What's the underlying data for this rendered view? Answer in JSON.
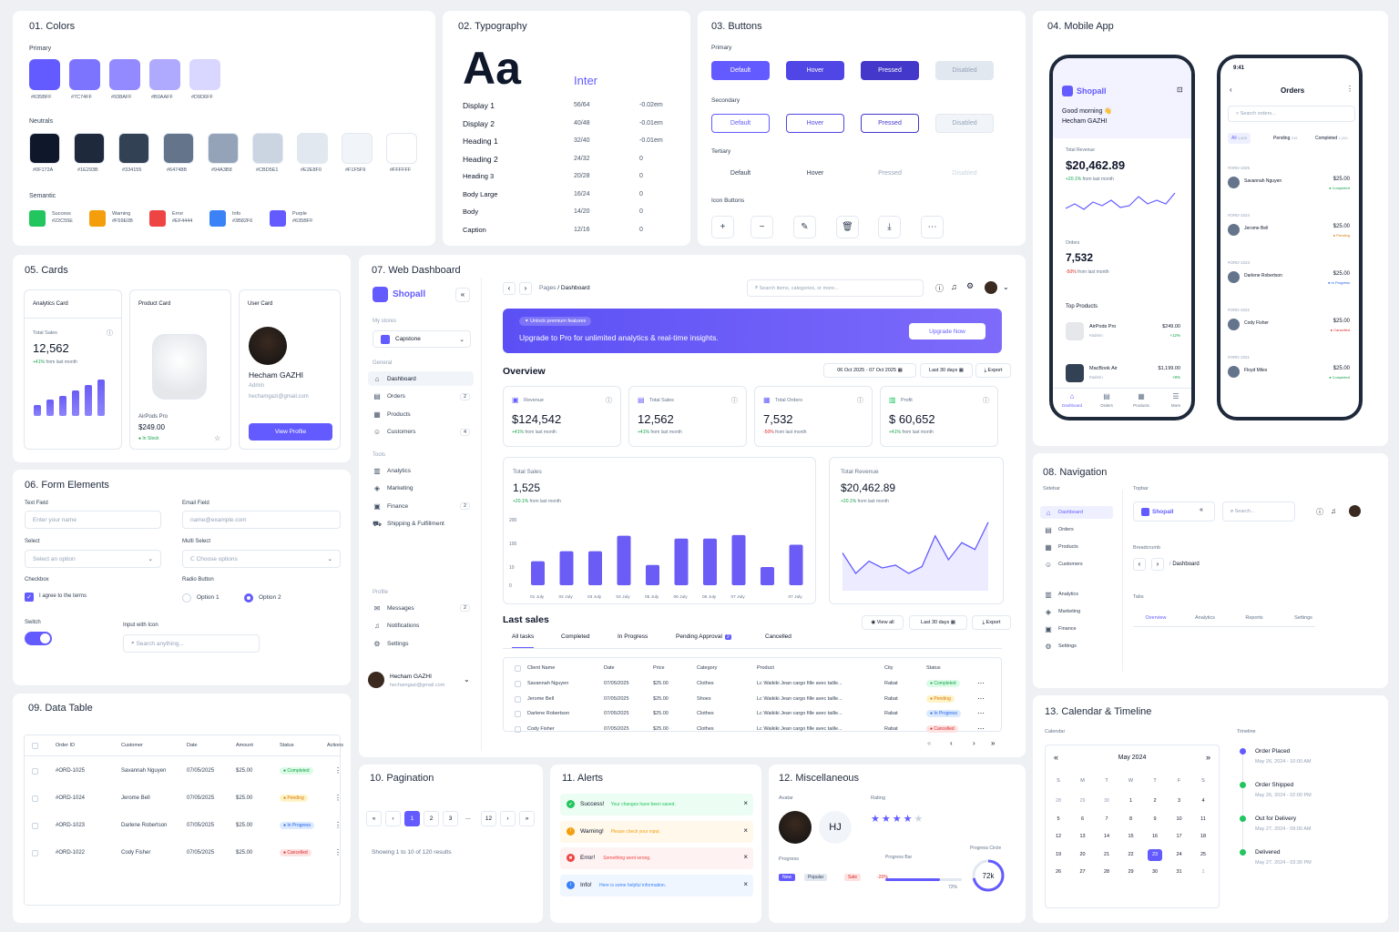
{
  "colors": {
    "title": "01. Colors",
    "primary_label": "Primary",
    "neutrals_label": "Neutrals",
    "semantic_label": "Semantic",
    "primary": [
      {
        "hex": "#635BFF",
        "label": "#635BFF"
      },
      {
        "hex": "#7C74FF",
        "label": "#7C74FF"
      },
      {
        "hex": "#938AFF",
        "label": "#938AFF"
      },
      {
        "hex": "#B0AAFF",
        "label": "#B0AAFF"
      },
      {
        "hex": "#D9D6FF",
        "label": "#D9D6FF"
      }
    ],
    "neutrals": [
      {
        "hex": "#0F172A",
        "label": "#0F172A"
      },
      {
        "hex": "#1E293B",
        "label": "#1E293B"
      },
      {
        "hex": "#334155",
        "label": "#334155"
      },
      {
        "hex": "#64748B",
        "label": "#64748B"
      },
      {
        "hex": "#94A3B8",
        "label": "#94A3B8"
      },
      {
        "hex": "#CBD5E1",
        "label": "#CBD5E1"
      },
      {
        "hex": "#E2E8F0",
        "label": "#E2E8F0"
      },
      {
        "hex": "#F1F5F9",
        "label": "#F1F5F9"
      },
      {
        "hex": "#FFFFFF",
        "label": "#FFFFFF"
      }
    ],
    "semantic": [
      {
        "hex": "#22C55E",
        "name": "Success",
        "label": "#22C55E"
      },
      {
        "hex": "#F59E0B",
        "name": "Warning",
        "label": "#F59E0B"
      },
      {
        "hex": "#EF4444",
        "name": "Error",
        "label": "#EF4444"
      },
      {
        "hex": "#3B82F6",
        "name": "Info",
        "label": "#3B82F6"
      },
      {
        "hex": "#635BFF",
        "name": "Purple",
        "label": "#635BFF"
      }
    ]
  },
  "typography": {
    "title": "02. Typography",
    "sample": "Aa",
    "font": "Inter",
    "rows": [
      {
        "n": "Display 1",
        "s": "56/64",
        "t": "-0.02em"
      },
      {
        "n": "Display 2",
        "s": "40/48",
        "t": "-0.01em"
      },
      {
        "n": "Heading 1",
        "s": "32/40",
        "t": "-0.01em"
      },
      {
        "n": "Heading 2",
        "s": "24/32",
        "t": "0"
      },
      {
        "n": "Heading 3",
        "s": "20/28",
        "t": "0"
      },
      {
        "n": "Body Large",
        "s": "16/24",
        "t": "0"
      },
      {
        "n": "Body",
        "s": "14/20",
        "t": "0"
      },
      {
        "n": "Caption",
        "s": "12/16",
        "t": "0"
      }
    ]
  },
  "buttons": {
    "title": "03. Buttons",
    "primary": "Primary",
    "secondary": "Secondary",
    "tertiary": "Tertiary",
    "icon": "Icon Buttons",
    "states": [
      "Default",
      "Hover",
      "Pressed",
      "Disabled"
    ]
  },
  "mobile": {
    "title": "04. Mobile App",
    "time": "9:41",
    "brand": "Shopall",
    "greeting": "Good morning 👋",
    "user": "Hecham GAZHI",
    "rev_label": "Total Revenue",
    "rev": "$20,462.89",
    "rev_ch": "+20.1%",
    "rev_from": "from last month",
    "ord_label": "Orders",
    "ord": "7,532",
    "ord_ch": "-50%",
    "ord_from": "from last month",
    "top": "Top Products",
    "products": [
      {
        "n": "AirPods Pro",
        "s": "#admin",
        "p": "$249.00",
        "c": "+12%"
      },
      {
        "n": "MacBook Air",
        "s": "#admin",
        "p": "$1,199.00",
        "c": "+8%"
      }
    ],
    "tabs": [
      "Dashboard",
      "Orders",
      "Products",
      "More"
    ],
    "orders_title": "Orders",
    "search": "Search orders...",
    "otabs": [
      {
        "l": "All",
        "c": "1,525"
      },
      {
        "l": "Pending",
        "c": "215"
      },
      {
        "l": "Completed",
        "c": "1,310"
      }
    ],
    "orders": [
      {
        "id": "#ORD-1025",
        "n": "Savannah Nguyen",
        "a": "$25.00",
        "s": "Completed"
      },
      {
        "id": "#ORD-1024",
        "n": "Jerome Bell",
        "a": "$25.00",
        "s": "Pending"
      },
      {
        "id": "#ORD-1023",
        "n": "Darlene Robertson",
        "a": "$25.00",
        "s": "In Progress"
      },
      {
        "id": "#ORD-1022",
        "n": "Cody Fisher",
        "a": "$25.00",
        "s": "Cancelled"
      },
      {
        "id": "#ORD-1021",
        "n": "Floyd Miles",
        "a": "$25.00",
        "s": "Completed"
      }
    ]
  },
  "cards": {
    "title": "05. Cards",
    "a_title": "Analytics Card",
    "a_label": "Total Sales",
    "a_val": "12,562",
    "a_ch": "+41%",
    "a_from": "from last month",
    "a_bars": [
      0.3,
      0.45,
      0.55,
      0.7,
      0.85,
      1.0
    ],
    "p_title": "Product Card",
    "p_name": "AirPods Pro",
    "p_price": "$249.00",
    "p_stock": "In Stock",
    "u_title": "User Card",
    "u_name": "Hecham GAZHI",
    "u_role": "Admin",
    "u_mail": "hechamgazi@gmail.com",
    "u_btn": "View Profile"
  },
  "forms": {
    "title": "06. Form Elements",
    "text": "Text Field",
    "text_ph": "Enter your name",
    "email": "Email Field",
    "email_ph": "name@example.com",
    "select": "Select",
    "select_ph": "Select an option",
    "multi": "Multi Select",
    "multi_ph": "Choose options",
    "checkbox": "Checkbox",
    "check_text": "I agree to the terms",
    "radio": "Radio Button",
    "r1": "Option 1",
    "r2": "Option 2",
    "switch": "Switch",
    "iwi": "Input with Icon",
    "iwi_ph": "Search anything..."
  },
  "dash": {
    "title": "07. Web Dashboard",
    "brand": "Shopall",
    "stores": "My stores",
    "store": "Capstone",
    "general": "General",
    "gen": [
      {
        "l": "Dashboard",
        "c": ""
      },
      {
        "l": "Orders",
        "c": "2"
      },
      {
        "l": "Products",
        "c": ""
      },
      {
        "l": "Customers",
        "c": "4"
      }
    ],
    "tools": "Tools",
    "tool": [
      {
        "l": "Analytics",
        "c": ""
      },
      {
        "l": "Marketing",
        "c": ""
      },
      {
        "l": "Finance",
        "c": "2"
      },
      {
        "l": "Shipping & Fulfillment",
        "c": ""
      }
    ],
    "profile": "Profile",
    "prof": [
      {
        "l": "Messages",
        "c": "2"
      },
      {
        "l": "Notifications",
        "c": ""
      },
      {
        "l": "Settings",
        "c": ""
      }
    ],
    "user": "Hecham GAZHI",
    "mail": "hechamgazi@gmail.com",
    "crumb1": "Pages",
    "crumb2": "Dashboard",
    "search": "Search items, categories, or more...",
    "promo_tag": "Unlock premium features",
    "promo": "Upgrade to Pro for unlimited analytics & real-time insights.",
    "promo_btn": "Upgrade Now",
    "overview": "Overview",
    "range": "06 Oct 2025 - 07 Oct 2025",
    "last30": "Last 30 days",
    "export": "Export",
    "kpis": [
      {
        "l": "Revenue",
        "v": "$124,542",
        "c": "+41%",
        "f": "from last month"
      },
      {
        "l": "Total Sales",
        "v": "12,562",
        "c": "+41%",
        "f": "from last month"
      },
      {
        "l": "Total Orders",
        "v": "7,532",
        "c": "-50%",
        "f": "from last month"
      },
      {
        "l": "Profit",
        "v": "$ 60,652",
        "c": "+41%",
        "f": "from last month"
      }
    ],
    "ts_label": "Total Sales",
    "ts_val": "1,525",
    "ts_ch": "+20.1%",
    "ts_from": "from last month",
    "tr_label": "Total Revenue",
    "tr_val": "$20,462.89",
    "tr_ch": "+20.1%",
    "tr_from": "from last month",
    "last_sales": "Last sales",
    "view_all": "View all",
    "stabs": [
      "All tasks",
      "Completed",
      "In Progress",
      "Pending Approval",
      "Cancelled"
    ],
    "pending_count": "2",
    "cols": [
      "Client Name",
      "Date",
      "Price",
      "Category",
      "Product",
      "City",
      "Status"
    ],
    "rows": [
      {
        "n": "Savannah Nguyen",
        "d": "07/05/2025",
        "p": "$25.00",
        "c": "Clothes",
        "pr": "Lc Waikiki Jean cargo fille avec taille...",
        "ci": "Rabat",
        "s": "Completed"
      },
      {
        "n": "Jerome Bell",
        "d": "07/05/2025",
        "p": "$25.00",
        "c": "Shoes",
        "pr": "Lc Waikiki Jean cargo fille avec taille...",
        "ci": "Rabat",
        "s": "Pending"
      },
      {
        "n": "Darlene Robertson",
        "d": "07/05/2025",
        "p": "$25.00",
        "c": "Clothes",
        "pr": "Lc Waikiki Jean cargo fille avec taille...",
        "ci": "Rabat",
        "s": "In Progress"
      },
      {
        "n": "Cody Fisher",
        "d": "07/05/2025",
        "p": "$25.00",
        "c": "Clothes",
        "pr": "Lc Waikiki Jean cargo fille avec taille...",
        "ci": "Rabat",
        "s": "Cancelled"
      }
    ]
  },
  "chart_data": [
    {
      "type": "bar",
      "title": "Total Sales",
      "categories": [
        "01 July",
        "02 July",
        "03 July",
        "04 July",
        "05 July",
        "06 July",
        "06 July",
        "07 July",
        "",
        "07 July"
      ],
      "values": [
        32,
        70,
        70,
        132,
        18,
        120,
        120,
        135,
        10,
        95
      ],
      "yticks": [
        "200",
        "100",
        "10",
        "0"
      ],
      "ylim": [
        0,
        200
      ]
    },
    {
      "type": "line",
      "title": "Total Revenue",
      "x": [
        1,
        2,
        3,
        4,
        5,
        6,
        7,
        8,
        9,
        10,
        11,
        12
      ],
      "values": [
        50,
        20,
        38,
        28,
        32,
        20,
        30,
        75,
        40,
        65,
        55,
        95
      ]
    },
    {
      "type": "bar",
      "title": "Analytics Card",
      "values": [
        0.3,
        0.45,
        0.55,
        0.7,
        0.85,
        1.0
      ]
    }
  ],
  "nav": {
    "title": "08. Navigation",
    "sidebar": "Sidebar",
    "items": [
      "Dashboard",
      "Orders",
      "Products",
      "Customers",
      "Analytics",
      "Marketing",
      "Finance",
      "Settings"
    ],
    "topbar": "Topbar",
    "brand": "Shopall",
    "search": "Search...",
    "breadcrumb": "Breadcrumb",
    "crumb": "Dashboard",
    "tabs_label": "Tabs",
    "tabs": [
      "Overview",
      "Analytics",
      "Reports",
      "Settings"
    ]
  },
  "table": {
    "title": "09. Data Table",
    "cols": [
      "Order ID",
      "Customer",
      "Date",
      "Amount",
      "Status",
      "Actions"
    ],
    "rows": [
      {
        "id": "#ORD-1025",
        "n": "Savannah Nguyen",
        "d": "07/05/2025",
        "a": "$25.00",
        "s": "Completed"
      },
      {
        "id": "#ORD-1024",
        "n": "Jerome Bell",
        "d": "07/05/2025",
        "a": "$25.00",
        "s": "Pending"
      },
      {
        "id": "#ORD-1023",
        "n": "Darlene Robertson",
        "d": "07/05/2025",
        "a": "$25.00",
        "s": "In Progress"
      },
      {
        "id": "#ORD-1022",
        "n": "Cody Fisher",
        "d": "07/05/2025",
        "a": "$25.00",
        "s": "Cancelled"
      }
    ]
  },
  "pagination": {
    "title": "10. Pagination",
    "pages": [
      "1",
      "2",
      "3",
      "...",
      "12"
    ],
    "info": "Showing 1 to 10 of 120 results"
  },
  "alerts": {
    "title": "11. Alerts",
    "items": [
      {
        "t": "Success!",
        "m": "Your changes have been saved.",
        "c": "#22C55E",
        "bg": "#ECFDF3"
      },
      {
        "t": "Warning!",
        "m": "Please check your input.",
        "c": "#F59E0B",
        "bg": "#FFF8EB"
      },
      {
        "t": "Error!",
        "m": "Something went wrong.",
        "c": "#EF4444",
        "bg": "#FEF2F2"
      },
      {
        "t": "Info!",
        "m": "Here is some helpful information.",
        "c": "#3B82F6",
        "bg": "#EFF6FF"
      }
    ]
  },
  "misc": {
    "title": "12. Miscellaneous",
    "avatar": "Avatar",
    "initials": "HJ",
    "rating": "Rating",
    "stars": 4,
    "progress": "Progress",
    "tags": [
      "New",
      "Popular",
      "Sale",
      "-20%"
    ],
    "pbar": "Progress Bar",
    "pval": "72%",
    "pfill": 0.72,
    "pcircle": "Progress Circle",
    "circ": "72k",
    "circ_fill": 0.72
  },
  "calendar": {
    "title": "13. Calendar & Timeline",
    "cal": "Calendar",
    "month": "May 2024",
    "dows": [
      "S",
      "M",
      "T",
      "W",
      "T",
      "F",
      "S"
    ],
    "days": [
      "28",
      "29",
      "30",
      "1",
      "2",
      "3",
      "4",
      "5",
      "6",
      "7",
      "8",
      "9",
      "10",
      "11",
      "12",
      "13",
      "14",
      "15",
      "16",
      "17",
      "18",
      "19",
      "20",
      "21",
      "22",
      "23",
      "24",
      "25",
      "26",
      "27",
      "28",
      "29",
      "30",
      "31",
      "1"
    ],
    "selected": "23",
    "timeline": "Timeline",
    "events": [
      {
        "t": "Order Placed",
        "d": "May 26, 2024 - 10:00 AM",
        "c": "#635BFF"
      },
      {
        "t": "Order Shipped",
        "d": "May 26, 2024 - 02:00 PM",
        "c": "#22C55E"
      },
      {
        "t": "Out for Delivery",
        "d": "May 27, 2024 - 09:00 AM",
        "c": "#22C55E"
      },
      {
        "t": "Delivered",
        "d": "May 27, 2024 - 03:30 PM",
        "c": "#22C55E"
      }
    ]
  }
}
